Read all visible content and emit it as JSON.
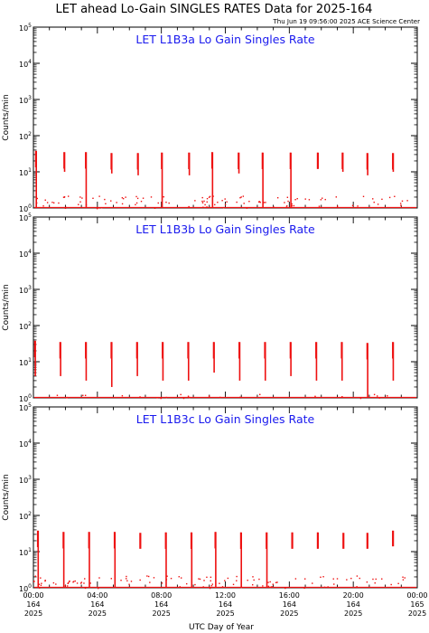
{
  "title": "LET ahead Lo-Gain SINGLES RATES Data for 2025-164",
  "timestamp": "Thu Jun 19 09:56:00 2025 ACE Science Center",
  "xlabel": "UTC Day of Year",
  "series_color": "#ee1111",
  "title_color": "#1a1aee",
  "x_ticks": [
    {
      "hour": 0,
      "time": "00:00",
      "doy": "164",
      "year": "2025"
    },
    {
      "hour": 4,
      "time": "04:00",
      "doy": "164",
      "year": "2025"
    },
    {
      "hour": 8,
      "time": "08:00",
      "doy": "164",
      "year": "2025"
    },
    {
      "hour": 12,
      "time": "12:00",
      "doy": "164",
      "year": "2025"
    },
    {
      "hour": 16,
      "time": "16:00",
      "doy": "164",
      "year": "2025"
    },
    {
      "hour": 20,
      "time": "20:00",
      "doy": "164",
      "year": "2025"
    },
    {
      "hour": 24,
      "time": "00:00",
      "doy": "165",
      "year": "2025"
    }
  ],
  "y_tick_exponents": [
    "0",
    "1",
    "2",
    "3",
    "4",
    "5"
  ],
  "chart_data": [
    {
      "type": "line",
      "title": "LET L1B3a Lo Gain Singles Rate",
      "ylabel": "Counts/min",
      "y_scale": "log",
      "ylim": [
        1,
        100000
      ],
      "xlim_hours": [
        0,
        24
      ],
      "spikes": [
        {
          "hour": 0.18,
          "top": 38,
          "bottom": 1
        },
        {
          "hour": 1.95,
          "top": 35,
          "bottom": 10
        },
        {
          "hour": 3.3,
          "top": 35,
          "bottom": 1
        },
        {
          "hour": 4.9,
          "top": 33,
          "bottom": 9
        },
        {
          "hour": 6.55,
          "top": 33,
          "bottom": 8
        },
        {
          "hour": 8.05,
          "top": 34,
          "bottom": 1
        },
        {
          "hour": 9.75,
          "top": 34,
          "bottom": 8
        },
        {
          "hour": 11.2,
          "top": 35,
          "bottom": 1
        },
        {
          "hour": 12.85,
          "top": 34,
          "bottom": 9
        },
        {
          "hour": 14.35,
          "top": 34,
          "bottom": 1
        },
        {
          "hour": 16.1,
          "top": 34,
          "bottom": 1
        },
        {
          "hour": 17.8,
          "top": 34,
          "bottom": 12
        },
        {
          "hour": 19.35,
          "top": 34,
          "bottom": 10
        },
        {
          "hour": 20.9,
          "top": 33,
          "bottom": 8
        },
        {
          "hour": 22.5,
          "top": 33,
          "bottom": 10
        }
      ]
    },
    {
      "type": "line",
      "title": "LET L1B3b Lo Gain Singles Rate",
      "ylabel": "Counts/min",
      "y_scale": "log",
      "ylim": [
        1,
        100000
      ],
      "xlim_hours": [
        0,
        24
      ],
      "spikes": [
        {
          "hour": 0.12,
          "top": 38,
          "bottom": 4
        },
        {
          "hour": 1.7,
          "top": 35,
          "bottom": 4
        },
        {
          "hour": 3.3,
          "top": 35,
          "bottom": 3
        },
        {
          "hour": 4.9,
          "top": 35,
          "bottom": 2
        },
        {
          "hour": 6.5,
          "top": 35,
          "bottom": 4
        },
        {
          "hour": 8.1,
          "top": 35,
          "bottom": 3
        },
        {
          "hour": 9.7,
          "top": 35,
          "bottom": 3
        },
        {
          "hour": 11.3,
          "top": 35,
          "bottom": 5
        },
        {
          "hour": 12.9,
          "top": 35,
          "bottom": 3
        },
        {
          "hour": 14.5,
          "top": 35,
          "bottom": 3
        },
        {
          "hour": 16.1,
          "top": 35,
          "bottom": 4
        },
        {
          "hour": 17.7,
          "top": 35,
          "bottom": 3
        },
        {
          "hour": 19.3,
          "top": 35,
          "bottom": 3
        },
        {
          "hour": 20.9,
          "top": 33,
          "bottom": 1
        },
        {
          "hour": 22.5,
          "top": 35,
          "bottom": 3
        }
      ]
    },
    {
      "type": "line",
      "title": "LET L1B3c Lo Gain Singles Rate",
      "ylabel": "Counts/min",
      "y_scale": "log",
      "ylim": [
        1,
        100000
      ],
      "xlim_hours": [
        0,
        24
      ],
      "spikes": [
        {
          "hour": 0.3,
          "top": 38,
          "bottom": 1
        },
        {
          "hour": 1.9,
          "top": 35,
          "bottom": 1
        },
        {
          "hour": 3.5,
          "top": 35,
          "bottom": 1
        },
        {
          "hour": 5.1,
          "top": 35,
          "bottom": 1
        },
        {
          "hour": 6.7,
          "top": 33,
          "bottom": 12
        },
        {
          "hour": 8.3,
          "top": 34,
          "bottom": 1
        },
        {
          "hour": 9.9,
          "top": 34,
          "bottom": 1
        },
        {
          "hour": 11.4,
          "top": 35,
          "bottom": 1
        },
        {
          "hour": 13.0,
          "top": 34,
          "bottom": 1
        },
        {
          "hour": 14.6,
          "top": 34,
          "bottom": 1
        },
        {
          "hour": 16.2,
          "top": 34,
          "bottom": 12
        },
        {
          "hour": 17.8,
          "top": 34,
          "bottom": 12
        },
        {
          "hour": 19.4,
          "top": 33,
          "bottom": 12
        },
        {
          "hour": 20.9,
          "top": 33,
          "bottom": 12
        },
        {
          "hour": 22.5,
          "top": 38,
          "bottom": 14
        }
      ]
    }
  ]
}
